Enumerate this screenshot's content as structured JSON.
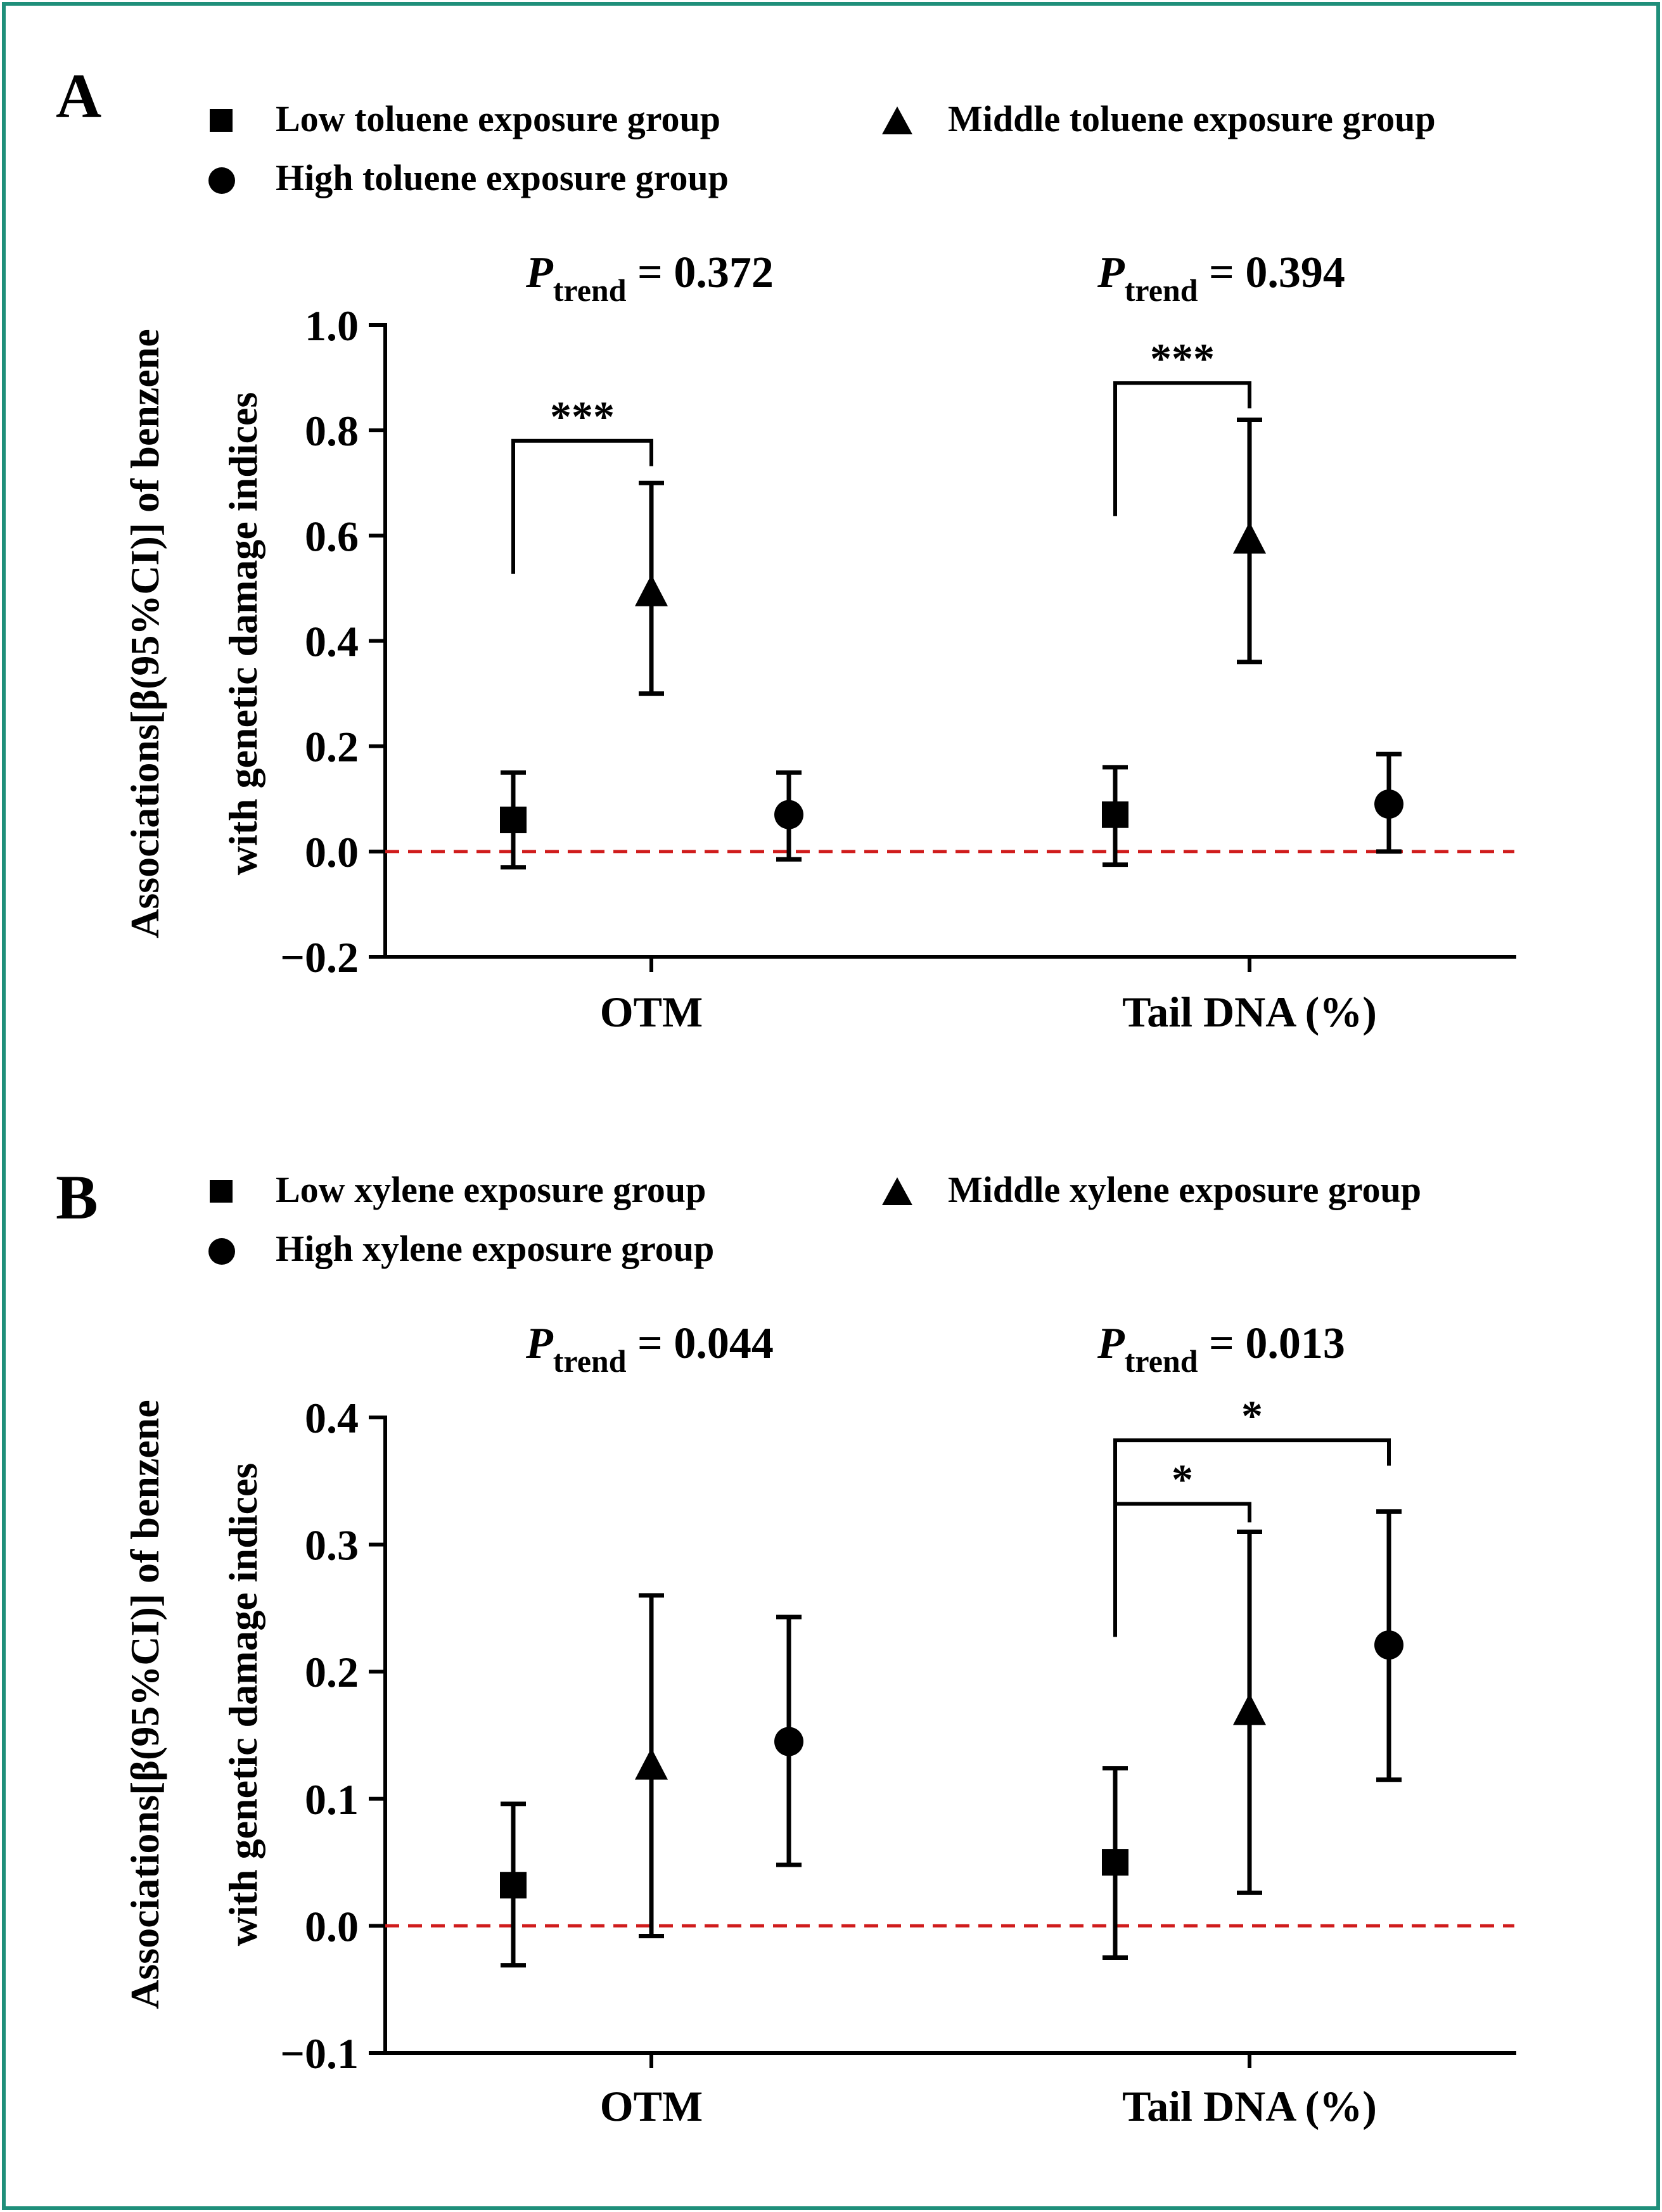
{
  "figure": {
    "border_color": "#1f8f7a",
    "dashed_ref_color": "#d01c1c"
  },
  "chart_data": [
    {
      "type": "scatter",
      "panel": "A",
      "legend": [
        {
          "key": "low",
          "marker": "square",
          "label": "Low toluene exposure group"
        },
        {
          "key": "middle",
          "marker": "triangle",
          "label": "Middle toluene exposure group"
        },
        {
          "key": "high",
          "marker": "circle",
          "label": "High toluene exposure group"
        }
      ],
      "ylabel_line1": "Associations[β(95%CI)] of benzene",
      "ylabel_line2": "with genetic damage indices",
      "ylim": [
        -0.2,
        1.0
      ],
      "yticks": [
        1.0,
        0.8,
        0.6,
        0.4,
        0.2,
        0.0,
        -0.2
      ],
      "ytick_labels": [
        "1.0",
        "0.8",
        "0.6",
        "0.4",
        "0.2",
        "0.0",
        "−0.2"
      ],
      "reference_line": 0.0,
      "categories": [
        {
          "label": "OTM",
          "p_trend_symbol": "P",
          "p_trend_sub": "trend",
          "p_trend_text": " = 0.372",
          "points": [
            {
              "group": "low",
              "marker": "square",
              "estimate": 0.06,
              "lower": -0.03,
              "upper": 0.15
            },
            {
              "group": "middle",
              "marker": "triangle",
              "estimate": 0.49,
              "lower": 0.3,
              "upper": 0.7
            },
            {
              "group": "high",
              "marker": "circle",
              "estimate": 0.07,
              "lower": -0.015,
              "upper": 0.15
            }
          ],
          "brackets": [
            {
              "from": "low",
              "to": "middle",
              "height": 0.78,
              "label": "***"
            }
          ]
        },
        {
          "label": "Tail DNA (%)",
          "p_trend_symbol": "P",
          "p_trend_sub": "trend",
          "p_trend_text": " = 0.394",
          "points": [
            {
              "group": "low",
              "marker": "square",
              "estimate": 0.07,
              "lower": -0.025,
              "upper": 0.16
            },
            {
              "group": "middle",
              "marker": "triangle",
              "estimate": 0.59,
              "lower": 0.36,
              "upper": 0.82
            },
            {
              "group": "high",
              "marker": "circle",
              "estimate": 0.09,
              "lower": 0.0,
              "upper": 0.185
            }
          ],
          "brackets": [
            {
              "from": "low",
              "to": "middle",
              "height": 0.89,
              "label": "***"
            }
          ]
        }
      ]
    },
    {
      "type": "scatter",
      "panel": "B",
      "legend": [
        {
          "key": "low",
          "marker": "square",
          "label": "Low xylene exposure group"
        },
        {
          "key": "middle",
          "marker": "triangle",
          "label": "Middle xylene exposure group"
        },
        {
          "key": "high",
          "marker": "circle",
          "label": "High xylene exposure group"
        }
      ],
      "ylabel_line1": "Associations[β(95%CI)] of benzene",
      "ylabel_line2": "with genetic damage indices",
      "ylim": [
        -0.1,
        0.4
      ],
      "yticks": [
        0.4,
        0.3,
        0.2,
        0.1,
        0.0,
        -0.1
      ],
      "ytick_labels": [
        "0.4",
        "0.3",
        "0.2",
        "0.1",
        "0.0",
        "−0.1"
      ],
      "reference_line": 0.0,
      "categories": [
        {
          "label": "OTM",
          "p_trend_symbol": "P",
          "p_trend_sub": "trend",
          "p_trend_text": " = 0.044",
          "points": [
            {
              "group": "low",
              "marker": "square",
              "estimate": 0.032,
              "lower": -0.031,
              "upper": 0.096
            },
            {
              "group": "middle",
              "marker": "triangle",
              "estimate": 0.125,
              "lower": -0.008,
              "upper": 0.26
            },
            {
              "group": "high",
              "marker": "circle",
              "estimate": 0.145,
              "lower": 0.048,
              "upper": 0.243
            }
          ],
          "brackets": []
        },
        {
          "label": "Tail DNA (%)",
          "p_trend_symbol": "P",
          "p_trend_sub": "trend",
          "p_trend_text": " = 0.013",
          "points": [
            {
              "group": "low",
              "marker": "square",
              "estimate": 0.05,
              "lower": -0.025,
              "upper": 0.124
            },
            {
              "group": "middle",
              "marker": "triangle",
              "estimate": 0.168,
              "lower": 0.026,
              "upper": 0.31
            },
            {
              "group": "high",
              "marker": "circle",
              "estimate": 0.221,
              "lower": 0.115,
              "upper": 0.326
            }
          ],
          "brackets": [
            {
              "from": "low",
              "to": "middle",
              "height": 0.332,
              "label": "*"
            },
            {
              "from": "low",
              "to": "high",
              "height": 0.382,
              "label": "*"
            }
          ]
        }
      ]
    }
  ]
}
